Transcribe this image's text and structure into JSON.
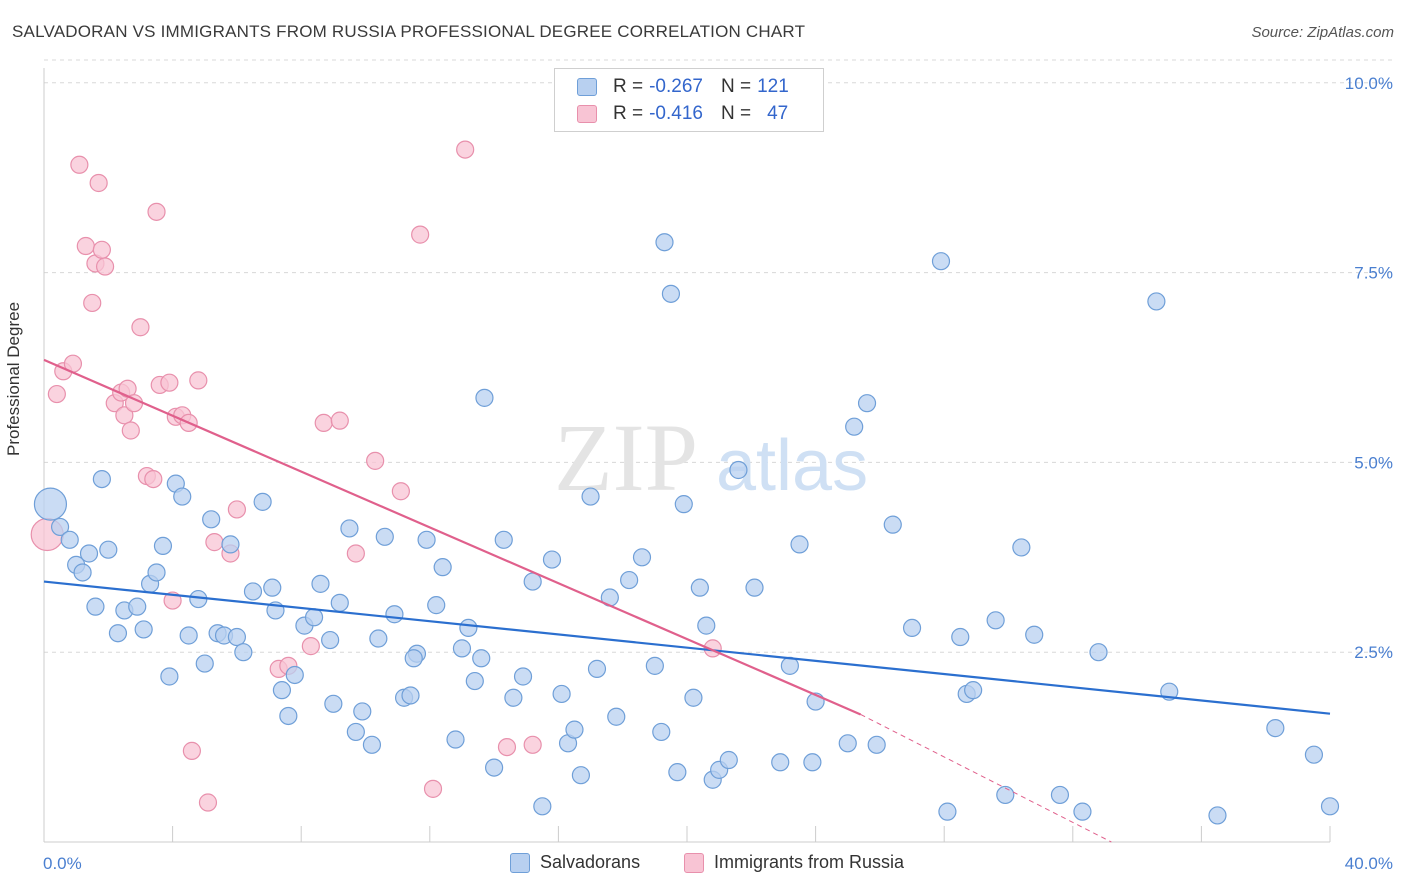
{
  "header": {
    "title": "SALVADORAN VS IMMIGRANTS FROM RUSSIA PROFESSIONAL DEGREE CORRELATION CHART",
    "source": "Source: ZipAtlas.com"
  },
  "watermark": {
    "zip": "ZIP",
    "atlas": "atlas"
  },
  "legend": {
    "rows": [
      {
        "r_label": "R =",
        "r_value": "-0.267",
        "n_label": "N =",
        "n_value": "121"
      },
      {
        "r_label": "R =",
        "r_value": "-0.416",
        "n_label": "N =",
        "n_value": "47"
      }
    ]
  },
  "bottom_legend": {
    "series1": "Salvadorans",
    "series2": "Immigrants from Russia"
  },
  "axes": {
    "ylabel": "Professional Degree",
    "x_min_label": "0.0%",
    "x_max_label": "40.0%",
    "y_tick_labels": [
      "10.0%",
      "7.5%",
      "5.0%",
      "2.5%"
    ]
  },
  "colors": {
    "blue_fill": "#b8d0f0",
    "blue_stroke": "#6f9fd8",
    "blue_line": "#2b6fcf",
    "pink_fill": "#f8c4d4",
    "pink_stroke": "#e890ac",
    "pink_line": "#e0608c",
    "grid": "#d8d8d8",
    "tick_label": "#4a7fd0"
  },
  "chart_data": {
    "type": "scatter",
    "title": "SALVADORAN VS IMMIGRANTS FROM RUSSIA PROFESSIONAL DEGREE CORRELATION CHART",
    "xlabel": "",
    "ylabel": "Professional Degree",
    "xlim": [
      0,
      40
    ],
    "ylim": [
      0,
      10.3
    ],
    "y_ticks": [
      2.5,
      5.0,
      7.5,
      10.0
    ],
    "grid": true,
    "grid_style": "dashed horizontal",
    "legend_position": "top-center",
    "series": [
      {
        "name": "Salvadorans",
        "color": "#6f9fd8",
        "R": -0.267,
        "N": 121,
        "trendline": {
          "x": [
            0,
            40
          ],
          "y": [
            3.43,
            1.69
          ]
        },
        "points": [
          [
            0.2,
            4.45
          ],
          [
            0.5,
            4.15
          ],
          [
            0.8,
            3.98
          ],
          [
            1.0,
            3.65
          ],
          [
            1.2,
            3.55
          ],
          [
            1.4,
            3.8
          ],
          [
            1.6,
            3.1
          ],
          [
            1.8,
            4.78
          ],
          [
            2.0,
            3.85
          ],
          [
            2.3,
            2.75
          ],
          [
            2.5,
            3.05
          ],
          [
            2.9,
            3.1
          ],
          [
            3.1,
            2.8
          ],
          [
            3.3,
            3.4
          ],
          [
            3.5,
            3.55
          ],
          [
            3.7,
            3.9
          ],
          [
            3.9,
            2.18
          ],
          [
            4.1,
            4.72
          ],
          [
            4.3,
            4.55
          ],
          [
            4.5,
            2.72
          ],
          [
            4.8,
            3.2
          ],
          [
            5.0,
            2.35
          ],
          [
            5.2,
            4.25
          ],
          [
            5.4,
            2.75
          ],
          [
            5.6,
            2.72
          ],
          [
            5.8,
            3.92
          ],
          [
            6.0,
            2.7
          ],
          [
            6.2,
            2.5
          ],
          [
            6.5,
            3.3
          ],
          [
            6.8,
            4.48
          ],
          [
            7.1,
            3.35
          ],
          [
            7.4,
            2.0
          ],
          [
            7.6,
            1.66
          ],
          [
            7.8,
            2.2
          ],
          [
            8.1,
            2.85
          ],
          [
            8.4,
            2.96
          ],
          [
            8.6,
            3.4
          ],
          [
            8.9,
            2.66
          ],
          [
            9.2,
            3.15
          ],
          [
            9.5,
            4.13
          ],
          [
            9.7,
            1.45
          ],
          [
            9.9,
            1.72
          ],
          [
            10.2,
            1.28
          ],
          [
            10.4,
            2.68
          ],
          [
            10.6,
            4.02
          ],
          [
            10.9,
            3.0
          ],
          [
            11.2,
            1.9
          ],
          [
            11.4,
            1.93
          ],
          [
            11.6,
            2.48
          ],
          [
            11.9,
            3.98
          ],
          [
            12.2,
            3.12
          ],
          [
            12.4,
            3.62
          ],
          [
            12.8,
            1.35
          ],
          [
            13.0,
            2.55
          ],
          [
            13.2,
            2.82
          ],
          [
            13.4,
            2.12
          ],
          [
            13.7,
            5.85
          ],
          [
            14.0,
            0.98
          ],
          [
            14.3,
            3.98
          ],
          [
            14.6,
            1.9
          ],
          [
            14.9,
            2.18
          ],
          [
            15.2,
            3.43
          ],
          [
            15.5,
            0.47
          ],
          [
            15.8,
            3.72
          ],
          [
            16.1,
            1.95
          ],
          [
            16.3,
            1.3
          ],
          [
            16.5,
            1.48
          ],
          [
            16.7,
            0.88
          ],
          [
            17.2,
            2.28
          ],
          [
            17.6,
            3.22
          ],
          [
            17.8,
            1.65
          ],
          [
            18.2,
            3.45
          ],
          [
            18.6,
            3.75
          ],
          [
            19.0,
            2.32
          ],
          [
            19.3,
            7.9
          ],
          [
            19.5,
            7.22
          ],
          [
            19.7,
            0.92
          ],
          [
            19.9,
            4.45
          ],
          [
            20.2,
            1.9
          ],
          [
            20.4,
            3.35
          ],
          [
            20.6,
            2.85
          ],
          [
            20.8,
            0.82
          ],
          [
            21.0,
            0.95
          ],
          [
            21.3,
            1.08
          ],
          [
            22.1,
            3.35
          ],
          [
            22.9,
            1.05
          ],
          [
            23.2,
            2.32
          ],
          [
            23.5,
            3.92
          ],
          [
            23.9,
            1.05
          ],
          [
            25.0,
            1.3
          ],
          [
            25.2,
            5.47
          ],
          [
            25.6,
            5.78
          ],
          [
            25.9,
            1.28
          ],
          [
            26.4,
            4.18
          ],
          [
            27.0,
            2.82
          ],
          [
            27.9,
            7.65
          ],
          [
            28.1,
            0.4
          ],
          [
            28.5,
            2.7
          ],
          [
            28.7,
            1.95
          ],
          [
            28.9,
            2.0
          ],
          [
            29.6,
            2.92
          ],
          [
            29.9,
            0.62
          ],
          [
            30.4,
            3.88
          ],
          [
            30.8,
            2.73
          ],
          [
            31.6,
            0.62
          ],
          [
            32.3,
            0.4
          ],
          [
            32.8,
            2.5
          ],
          [
            34.6,
            7.12
          ],
          [
            35.0,
            1.98
          ],
          [
            36.5,
            0.35
          ],
          [
            38.3,
            1.5
          ],
          [
            39.5,
            1.15
          ],
          [
            40.0,
            0.47
          ],
          [
            17.0,
            4.55
          ],
          [
            11.5,
            2.42
          ],
          [
            9.0,
            1.82
          ],
          [
            13.6,
            2.42
          ],
          [
            24.0,
            1.85
          ],
          [
            7.2,
            3.05
          ],
          [
            19.2,
            1.45
          ],
          [
            21.6,
            4.9
          ]
        ]
      },
      {
        "name": "Immigrants from Russia",
        "color": "#e890ac",
        "R": -0.416,
        "N": 47,
        "trendline": {
          "x": [
            0,
            25.4
          ],
          "y": [
            6.35,
            1.68
          ],
          "dashed_extension": {
            "x": [
              25.4,
              33.2
            ],
            "y": [
              1.68,
              0.0
            ]
          }
        },
        "points": [
          [
            0.1,
            4.05
          ],
          [
            0.4,
            5.9
          ],
          [
            0.6,
            6.2
          ],
          [
            0.9,
            6.3
          ],
          [
            1.1,
            8.92
          ],
          [
            1.3,
            7.85
          ],
          [
            1.5,
            7.1
          ],
          [
            1.6,
            7.62
          ],
          [
            1.7,
            8.68
          ],
          [
            1.8,
            7.8
          ],
          [
            1.9,
            7.58
          ],
          [
            2.2,
            5.78
          ],
          [
            2.4,
            5.92
          ],
          [
            2.5,
            5.62
          ],
          [
            2.6,
            5.97
          ],
          [
            2.7,
            5.42
          ],
          [
            2.8,
            5.78
          ],
          [
            3.0,
            6.78
          ],
          [
            3.2,
            4.82
          ],
          [
            3.4,
            4.78
          ],
          [
            3.5,
            8.3
          ],
          [
            3.6,
            6.02
          ],
          [
            3.9,
            6.05
          ],
          [
            4.1,
            5.6
          ],
          [
            4.3,
            5.62
          ],
          [
            4.5,
            5.52
          ],
          [
            4.8,
            6.08
          ],
          [
            5.3,
            3.95
          ],
          [
            5.8,
            3.8
          ],
          [
            6.0,
            4.38
          ],
          [
            7.3,
            2.28
          ],
          [
            7.6,
            2.32
          ],
          [
            8.3,
            2.58
          ],
          [
            8.7,
            5.52
          ],
          [
            9.2,
            5.55
          ],
          [
            9.7,
            3.8
          ],
          [
            10.3,
            5.02
          ],
          [
            11.1,
            4.62
          ],
          [
            11.7,
            8.0
          ],
          [
            12.1,
            0.7
          ],
          [
            13.1,
            9.12
          ],
          [
            14.4,
            1.25
          ],
          [
            15.2,
            1.28
          ],
          [
            5.1,
            0.52
          ],
          [
            4.6,
            1.2
          ],
          [
            4.0,
            3.18
          ],
          [
            20.8,
            2.55
          ]
        ]
      }
    ]
  }
}
